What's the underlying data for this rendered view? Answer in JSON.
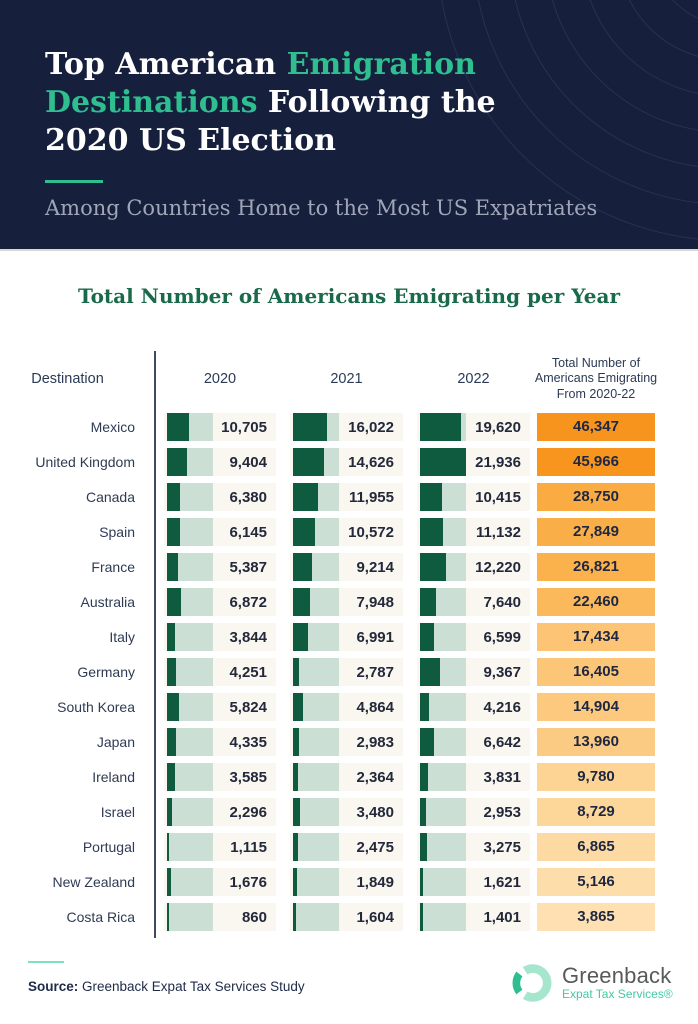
{
  "header": {
    "title_lines": [
      [
        {
          "t": "Top American ",
          "c": "w"
        },
        {
          "t": "Emigration",
          "c": "a"
        }
      ],
      [
        {
          "t": "Destinations",
          "c": "a"
        },
        {
          "t": " Following the",
          "c": "w"
        }
      ],
      [
        {
          "t": "2020 US Election",
          "c": "w"
        }
      ]
    ],
    "subtitle": "Among Countries Home to the Most US Expatriates"
  },
  "chart": {
    "title": "Total Number of Americans Emigrating per Year"
  },
  "table": {
    "col_destination": "Destination",
    "col_2020": "2020",
    "col_2021": "2021",
    "col_2022": "2022",
    "total_header_lines": [
      "Total Number of",
      "Americans Emigrating",
      "From 2020-22"
    ]
  },
  "chart_data": {
    "type": "bar",
    "title": "Total Number of Americans Emigrating per Year",
    "categories": [
      "Mexico",
      "United Kingdom",
      "Canada",
      "Spain",
      "France",
      "Australia",
      "Italy",
      "Germany",
      "South Korea",
      "Japan",
      "Ireland",
      "Israel",
      "Portugal",
      "New Zealand",
      "Costa Rica"
    ],
    "series": [
      {
        "name": "2020",
        "values": [
          10705,
          9404,
          6380,
          6145,
          5387,
          6872,
          3844,
          4251,
          5824,
          4335,
          3585,
          2296,
          1115,
          1676,
          860
        ]
      },
      {
        "name": "2021",
        "values": [
          16022,
          14626,
          11955,
          10572,
          9214,
          7948,
          6991,
          2787,
          4864,
          2983,
          2364,
          3480,
          2475,
          1849,
          1604
        ]
      },
      {
        "name": "2022",
        "values": [
          19620,
          21936,
          10415,
          11132,
          12220,
          7640,
          6599,
          9367,
          4216,
          6642,
          3831,
          2953,
          3275,
          1621,
          1401
        ]
      }
    ],
    "totals": {
      "name": "Total Number of Americans Emigrating From 2020-22",
      "values": [
        46347,
        45966,
        28750,
        27849,
        26821,
        22460,
        17434,
        16405,
        14904,
        13960,
        9780,
        8729,
        6865,
        5146,
        3865
      ]
    },
    "bar_scale_max": 21936,
    "row_total_colors": [
      "#F7941E",
      "#F7951E",
      "#FAAC42",
      "#FAAE47",
      "#FBB14C",
      "#FBB95C",
      "#FCC474",
      "#FCC678",
      "#FCC97E",
      "#FCCB83",
      "#FDD494",
      "#FDD699",
      "#FDDAA3",
      "#FDDDAA",
      "#FEE0B2"
    ]
  },
  "footer": {
    "source_label": "Source:",
    "source_text": " Greenback Expat Tax Services Study",
    "logo_name": "Greenback",
    "logo_sub": "Expat Tax Services®"
  },
  "colors": {
    "navy": "#16203C",
    "teal_accent": "#2FBE8F",
    "bar_dark_green": "#0E5B40",
    "bar_mint": "#CBDFD5",
    "cell_background": "#FAF7F1",
    "chart_title_green": "#19694A",
    "top_total_orange": "#F7941E"
  }
}
